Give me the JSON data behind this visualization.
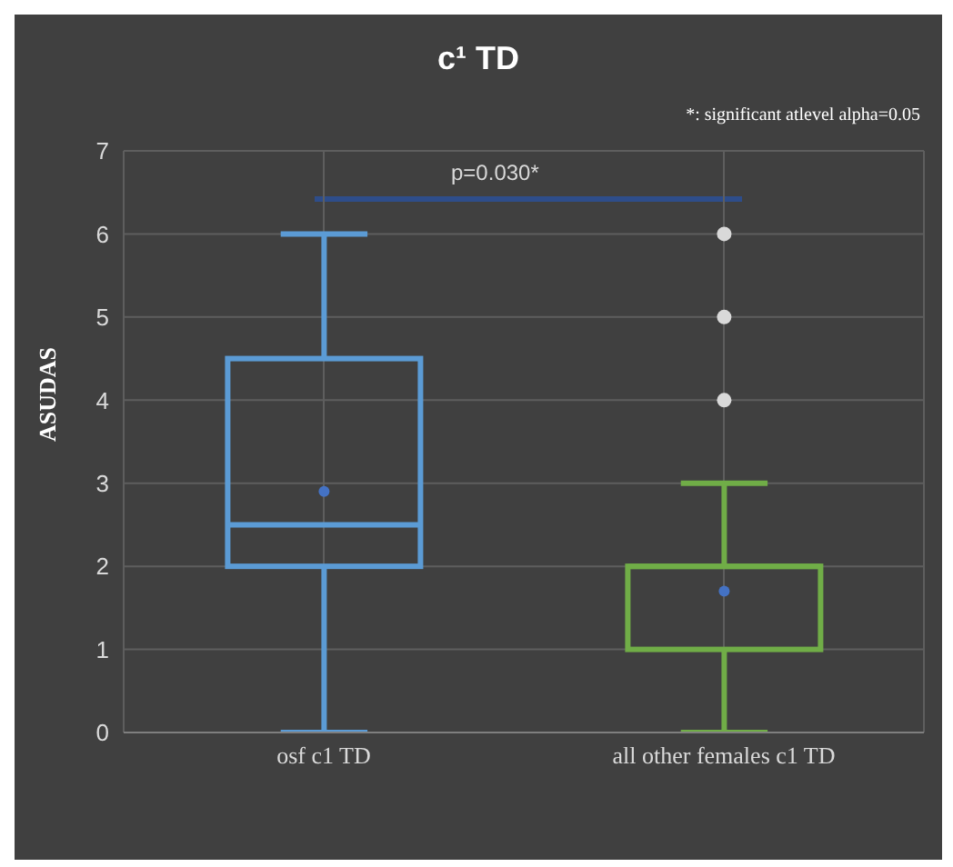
{
  "chart_data": {
    "type": "box",
    "title": "c¹ TD",
    "ylabel": "ASUDAS",
    "annotations": [
      "*: significant atlevel alpha=0.05",
      "p=0.030*"
    ],
    "categories": [
      "osf c1 TD",
      "all other females c1 TD"
    ],
    "colors": [
      "#5b9bd5",
      "#70ad47"
    ],
    "boxes": [
      {
        "low": 0,
        "q1": 2,
        "median": 2.5,
        "q3": 4.5,
        "high": 6,
        "mean": 2.9
      },
      {
        "low": 0,
        "q1": 1,
        "median": 2,
        "q3": 2,
        "high": 3,
        "mean": 1.7,
        "outliers": [
          4,
          5,
          6
        ]
      }
    ],
    "ylim": [
      0,
      7
    ],
    "yticks": [
      0,
      1,
      2,
      3,
      4,
      5,
      6,
      7
    ],
    "grid": true,
    "legend": false
  }
}
